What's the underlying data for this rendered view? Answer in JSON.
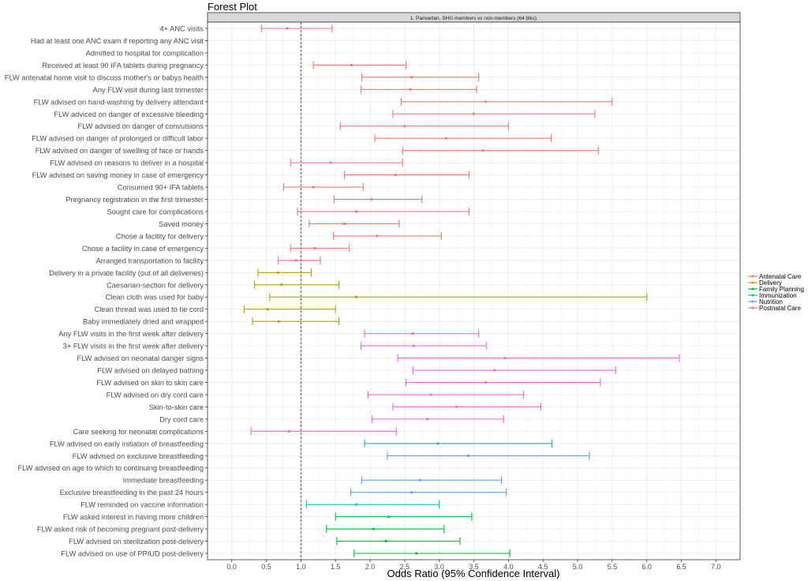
{
  "chart_data": {
    "type": "forest",
    "title": "Forest Plot",
    "facet_label": "1. Parivartan, SHG members vs non-members (64 blks)",
    "xlabel": "Odds Ratio (95% Confidence Interval)",
    "ylabel": "",
    "xlim": [
      -0.35,
      7.35
    ],
    "x_ticks": [
      0.0,
      0.5,
      1.0,
      1.5,
      2.0,
      2.5,
      3.0,
      3.5,
      4.0,
      4.5,
      5.0,
      5.5,
      6.0,
      6.5,
      7.0
    ],
    "x_tick_labels": [
      "0.0",
      "0.5",
      "1.0",
      "1.5",
      "2.0",
      "2.5",
      "3.0",
      "3.5",
      "4.0",
      "4.5",
      "5.0",
      "5.5",
      "6.0",
      "6.5",
      "7.0"
    ],
    "reference_line": 1.0,
    "grid": true,
    "legend_position": "right",
    "legend": [
      {
        "name": "Antenatal Care",
        "color": "#F8766D"
      },
      {
        "name": "Delivery",
        "color": "#B79F00"
      },
      {
        "name": "Family Planning",
        "color": "#00BA38"
      },
      {
        "name": "Immunization",
        "color": "#00BFC4"
      },
      {
        "name": "Nutrition",
        "color": "#619CFF"
      },
      {
        "name": "Postnatal Care",
        "color": "#F564E3"
      }
    ],
    "rows": [
      {
        "label": "4+ ANC visits",
        "group": "Antenatal Care",
        "or": 0.8,
        "lo": 0.43,
        "hi": 1.45
      },
      {
        "label": "Had at least one ANC exam if reporting any ANC visit",
        "group": "Antenatal Care",
        "or": null,
        "lo": null,
        "hi": null
      },
      {
        "label": "Admitted to hospital for complication",
        "group": "Antenatal Care",
        "or": null,
        "lo": null,
        "hi": null
      },
      {
        "label": "Received at least 90 IFA tablets during pregnancy",
        "group": "Antenatal Care",
        "or": 1.73,
        "lo": 1.18,
        "hi": 2.52
      },
      {
        "label": "FLW antenatal home visit to discuss mother's or babys health",
        "group": "Antenatal Care",
        "or": 2.6,
        "lo": 1.88,
        "hi": 3.57
      },
      {
        "label": "Any FLW visit during last trimester",
        "group": "Antenatal Care",
        "or": 2.58,
        "lo": 1.87,
        "hi": 3.54
      },
      {
        "label": "FLW advised on hand-washing by delivery attendant",
        "group": "Antenatal Care",
        "or": 3.67,
        "lo": 2.45,
        "hi": 5.5
      },
      {
        "label": "FLW adviced on danger of excessive bleeding",
        "group": "Antenatal Care",
        "or": 3.5,
        "lo": 2.33,
        "hi": 5.25
      },
      {
        "label": "FLW advised on danger of convulsions",
        "group": "Antenatal Care",
        "or": 2.5,
        "lo": 1.57,
        "hi": 4.0
      },
      {
        "label": "FLW advised on danger of prolonged or difficult labor",
        "group": "Antenatal Care",
        "or": 3.1,
        "lo": 2.07,
        "hi": 4.62
      },
      {
        "label": "FLW advised on danger of swelling of face or hands",
        "group": "Antenatal Care",
        "or": 3.63,
        "lo": 2.47,
        "hi": 5.3
      },
      {
        "label": "FLW advised on reasons to deliver in a hospital",
        "group": "Antenatal Care",
        "or": 1.43,
        "lo": 0.85,
        "hi": 2.47
      },
      {
        "label": "FLW advised on saving money in case of emergency",
        "group": "Antenatal Care",
        "or": 2.37,
        "lo": 1.63,
        "hi": 3.43
      },
      {
        "label": "Consumed 90+ IFA tablets",
        "group": "Antenatal Care",
        "or": 1.18,
        "lo": 0.75,
        "hi": 1.9
      },
      {
        "label": "Pregnancy registration in the first trimester",
        "group": "Antenatal Care",
        "or": 2.02,
        "lo": 1.48,
        "hi": 2.75
      },
      {
        "label": "Sought care for complications",
        "group": "Antenatal Care",
        "or": 1.8,
        "lo": 0.95,
        "hi": 3.43
      },
      {
        "label": "Saved money",
        "group": "Antenatal Care",
        "or": 1.63,
        "lo": 1.12,
        "hi": 2.42
      },
      {
        "label": "Chose a facility for delivery",
        "group": "Antenatal Care",
        "or": 2.1,
        "lo": 1.47,
        "hi": 3.03
      },
      {
        "label": "Chose a facility in case of emergency",
        "group": "Antenatal Care",
        "or": 1.2,
        "lo": 0.85,
        "hi": 1.7
      },
      {
        "label": "Arranged transportation to facility",
        "group": "Antenatal Care",
        "or": 0.93,
        "lo": 0.67,
        "hi": 1.28
      },
      {
        "label": "Delivery in a private facility (out of all deliveries)",
        "group": "Delivery",
        "or": 0.67,
        "lo": 0.38,
        "hi": 1.15
      },
      {
        "label": "Caesarian-section for delivery",
        "group": "Delivery",
        "or": 0.72,
        "lo": 0.33,
        "hi": 1.55
      },
      {
        "label": "Clean cloth was used for baby",
        "group": "Delivery",
        "or": 1.8,
        "lo": 0.55,
        "hi": 6.0
      },
      {
        "label": "Clean thread was used to tie cord",
        "group": "Delivery",
        "or": 0.52,
        "lo": 0.18,
        "hi": 1.5
      },
      {
        "label": "Baby immediately dried and wrapped",
        "group": "Delivery",
        "or": 0.68,
        "lo": 0.3,
        "hi": 1.55
      },
      {
        "label": "Any FLW visits in the first week after delivery",
        "group": "Postnatal Care",
        "or": 2.62,
        "lo": 1.92,
        "hi": 3.57
      },
      {
        "label": "3+ FLW visits in the first week after delivery",
        "group": "Postnatal Care",
        "or": 2.63,
        "lo": 1.87,
        "hi": 3.68
      },
      {
        "label": "FLW advised on neonatal danger signs",
        "group": "Postnatal Care",
        "or": 3.95,
        "lo": 2.4,
        "hi": 6.47
      },
      {
        "label": "FLW advised on delayed bathing",
        "group": "Postnatal Care",
        "or": 3.8,
        "lo": 2.62,
        "hi": 5.55
      },
      {
        "label": "FLW advised on skin to skin care",
        "group": "Postnatal Care",
        "or": 3.67,
        "lo": 2.52,
        "hi": 5.33
      },
      {
        "label": "FLW advised on dry cord care",
        "group": "Postnatal Care",
        "or": 2.88,
        "lo": 1.97,
        "hi": 4.22
      },
      {
        "label": "Skin-to-skin care",
        "group": "Postnatal Care",
        "or": 3.25,
        "lo": 2.33,
        "hi": 4.47
      },
      {
        "label": "Dry cord care",
        "group": "Postnatal Care",
        "or": 2.83,
        "lo": 2.03,
        "hi": 3.93
      },
      {
        "label": "Care seeking for neonatal complications",
        "group": "Postnatal Care",
        "or": 0.83,
        "lo": 0.28,
        "hi": 2.38
      },
      {
        "label": "FLW advised on early initiation of breastfeeding",
        "group": "Immunization",
        "or": 2.98,
        "lo": 1.92,
        "hi": 4.63
      },
      {
        "label": "FLW advised on exclusive breastfeeding",
        "group": "Nutrition",
        "or": 3.42,
        "lo": 2.25,
        "hi": 5.17
      },
      {
        "label": "FLW advised on age to which to continuing breastfeeding",
        "group": "Nutrition",
        "or": null,
        "lo": null,
        "hi": null
      },
      {
        "label": "Immediate breastfeeding",
        "group": "Nutrition",
        "or": 2.72,
        "lo": 1.88,
        "hi": 3.9
      },
      {
        "label": "Exclusive breastfeeding in the past 24 hours",
        "group": "Nutrition",
        "or": 2.6,
        "lo": 1.72,
        "hi": 3.97
      },
      {
        "label": "FLW reminded on vaccine information",
        "group": "Immunization",
        "or": 1.8,
        "lo": 1.08,
        "hi": 3.0
      },
      {
        "label": "FLW asked interest in having more children",
        "group": "Family Planning",
        "or": 2.27,
        "lo": 1.5,
        "hi": 3.47
      },
      {
        "label": "FLW asked risk of becoming pregnant post-delivery",
        "group": "Family Planning",
        "or": 2.05,
        "lo": 1.37,
        "hi": 3.07
      },
      {
        "label": "FLW advised on sterilization post-delivery",
        "group": "Family Planning",
        "or": 2.23,
        "lo": 1.52,
        "hi": 3.3
      },
      {
        "label": "FLW advised on use of PPIUD post-delivery",
        "group": "Family Planning",
        "or": 2.67,
        "lo": 1.77,
        "hi": 4.02
      }
    ]
  }
}
